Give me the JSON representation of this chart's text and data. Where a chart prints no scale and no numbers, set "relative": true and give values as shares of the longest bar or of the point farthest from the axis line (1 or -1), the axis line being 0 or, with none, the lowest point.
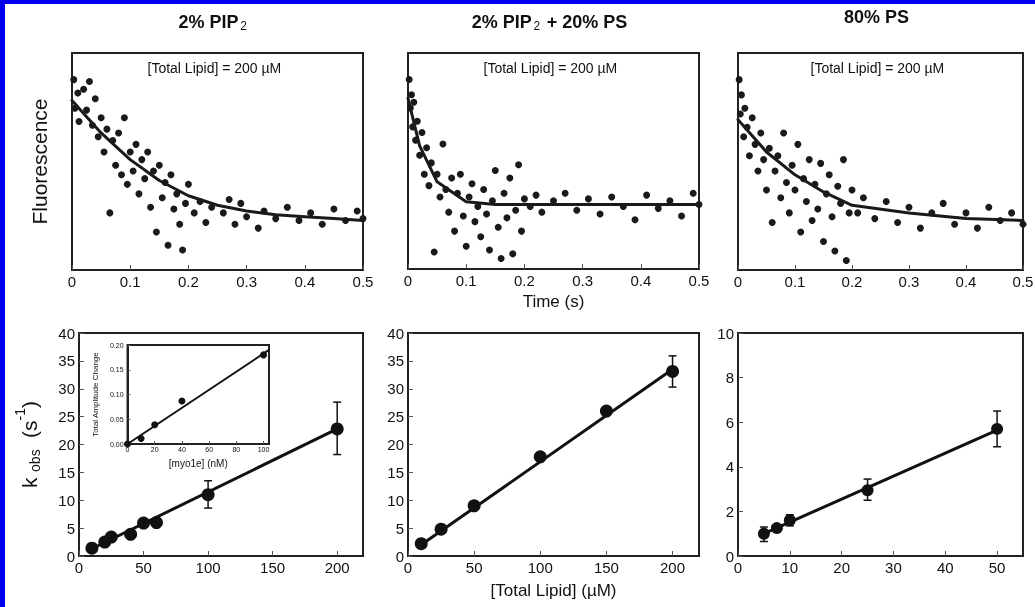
{
  "chart_data": [
    {
      "type": "scatter",
      "title": "2% PIP$_{2}$",
      "ylabel": "Fluorescence",
      "annotations": [
        "[Total Lipid] = 200 µM"
      ],
      "relative": true,
      "tick_labels": "x",
      "marker": "circle",
      "xlim": [
        0,
        0.5
      ],
      "xticks": [
        0,
        0.1,
        0.2,
        0.3,
        0.4,
        0.5
      ],
      "series": [
        {
          "type": "scatter",
          "color": "#1a1a1a",
          "x": [
            0.003,
            0.005,
            0.01,
            0.012,
            0.02,
            0.025,
            0.03,
            0.035,
            0.04,
            0.045,
            0.05,
            0.055,
            0.06,
            0.065,
            0.07,
            0.075,
            0.08,
            0.085,
            0.09,
            0.095,
            0.1,
            0.105,
            0.11,
            0.115,
            0.12,
            0.125,
            0.13,
            0.135,
            0.14,
            0.145,
            0.15,
            0.155,
            0.16,
            0.165,
            0.17,
            0.175,
            0.18,
            0.185,
            0.19,
            0.195,
            0.2,
            0.21,
            0.22,
            0.23,
            0.24,
            0.26,
            0.27,
            0.28,
            0.29,
            0.3,
            0.32,
            0.33,
            0.35,
            0.37,
            0.39,
            0.41,
            0.43,
            0.45,
            0.47,
            0.49,
            0.5
          ],
          "values": [
            1.0,
            0.85,
            0.93,
            0.78,
            0.95,
            0.84,
            0.99,
            0.76,
            0.9,
            0.7,
            0.8,
            0.62,
            0.74,
            0.3,
            0.68,
            0.55,
            0.72,
            0.5,
            0.8,
            0.45,
            0.62,
            0.52,
            0.66,
            0.4,
            0.58,
            0.48,
            0.62,
            0.33,
            0.52,
            0.2,
            0.55,
            0.38,
            0.46,
            0.13,
            0.5,
            0.32,
            0.4,
            0.24,
            0.105,
            0.35,
            0.45,
            0.3,
            0.36,
            0.25,
            0.33,
            0.3,
            0.37,
            0.24,
            0.35,
            0.28,
            0.22,
            0.31,
            0.27,
            0.33,
            0.26,
            0.3,
            0.24,
            0.32,
            0.26,
            0.31,
            0.27
          ]
        },
        {
          "type": "line",
          "marker": "none",
          "color": "#1a1a1a",
          "x": [
            0,
            0.05,
            0.1,
            0.15,
            0.2,
            0.25,
            0.3,
            0.35,
            0.4,
            0.45,
            0.5
          ],
          "values": [
            0.89,
            0.72,
            0.58,
            0.47,
            0.39,
            0.34,
            0.31,
            0.29,
            0.28,
            0.27,
            0.26
          ]
        }
      ]
    },
    {
      "type": "scatter",
      "title": "2% PIP$_{2}$ + 20% PS",
      "xlabel": "Time (s)",
      "annotations": [
        "[Total Lipid] = 200 µM"
      ],
      "relative": true,
      "tick_labels": "x",
      "marker": "circle",
      "xlim": [
        0,
        0.5
      ],
      "xticks": [
        0,
        0.1,
        0.2,
        0.3,
        0.4,
        0.5
      ],
      "series": [
        {
          "type": "scatter",
          "color": "#1a1a1a",
          "x": [
            0.002,
            0.004,
            0.006,
            0.008,
            0.01,
            0.013,
            0.016,
            0.02,
            0.024,
            0.028,
            0.032,
            0.036,
            0.04,
            0.045,
            0.05,
            0.055,
            0.06,
            0.065,
            0.07,
            0.075,
            0.08,
            0.085,
            0.09,
            0.095,
            0.1,
            0.105,
            0.11,
            0.115,
            0.12,
            0.125,
            0.13,
            0.135,
            0.14,
            0.145,
            0.15,
            0.155,
            0.16,
            0.165,
            0.17,
            0.175,
            0.18,
            0.185,
            0.19,
            0.195,
            0.2,
            0.21,
            0.22,
            0.23,
            0.25,
            0.27,
            0.29,
            0.31,
            0.33,
            0.35,
            0.37,
            0.39,
            0.41,
            0.43,
            0.45,
            0.47,
            0.49,
            0.5
          ],
          "values": [
            1.0,
            0.85,
            0.92,
            0.75,
            0.88,
            0.68,
            0.78,
            0.6,
            0.72,
            0.5,
            0.64,
            0.44,
            0.56,
            0.09,
            0.5,
            0.38,
            0.66,
            0.42,
            0.3,
            0.48,
            0.2,
            0.4,
            0.5,
            0.28,
            0.12,
            0.38,
            0.45,
            0.25,
            0.33,
            0.17,
            0.42,
            0.29,
            0.1,
            0.36,
            0.52,
            0.22,
            0.055,
            0.4,
            0.27,
            0.48,
            0.08,
            0.31,
            0.55,
            0.2,
            0.37,
            0.33,
            0.39,
            0.3,
            0.36,
            0.4,
            0.31,
            0.37,
            0.29,
            0.38,
            0.33,
            0.26,
            0.39,
            0.32,
            0.36,
            0.28,
            0.4,
            0.34
          ]
        },
        {
          "type": "line",
          "marker": "none",
          "color": "#1a1a1a",
          "x": [
            0,
            0.02,
            0.05,
            0.1,
            0.15,
            0.2,
            0.3,
            0.4,
            0.5
          ],
          "values": [
            0.9,
            0.65,
            0.46,
            0.355,
            0.34,
            0.34,
            0.34,
            0.34,
            0.34
          ]
        }
      ]
    },
    {
      "type": "scatter",
      "title": "80% PS",
      "annotations": [
        "[Total Lipid] = 200 µM"
      ],
      "relative": true,
      "tick_labels": "x",
      "marker": "circle",
      "xlim": [
        0,
        0.5
      ],
      "xticks": [
        0,
        0.1,
        0.2,
        0.3,
        0.4,
        0.5
      ],
      "series": [
        {
          "type": "scatter",
          "color": "#1a1a1a",
          "x": [
            0.002,
            0.004,
            0.006,
            0.01,
            0.012,
            0.016,
            0.02,
            0.025,
            0.03,
            0.035,
            0.04,
            0.045,
            0.05,
            0.055,
            0.06,
            0.065,
            0.07,
            0.075,
            0.08,
            0.085,
            0.09,
            0.095,
            0.1,
            0.105,
            0.11,
            0.115,
            0.12,
            0.125,
            0.13,
            0.135,
            0.14,
            0.145,
            0.15,
            0.155,
            0.16,
            0.165,
            0.17,
            0.175,
            0.18,
            0.185,
            0.19,
            0.195,
            0.2,
            0.21,
            0.22,
            0.24,
            0.26,
            0.28,
            0.3,
            0.32,
            0.34,
            0.36,
            0.38,
            0.4,
            0.42,
            0.44,
            0.46,
            0.48,
            0.5
          ],
          "values": [
            1.0,
            0.82,
            0.92,
            0.7,
            0.85,
            0.75,
            0.6,
            0.8,
            0.66,
            0.52,
            0.72,
            0.58,
            0.42,
            0.64,
            0.25,
            0.52,
            0.6,
            0.38,
            0.72,
            0.46,
            0.3,
            0.55,
            0.42,
            0.66,
            0.2,
            0.48,
            0.36,
            0.58,
            0.26,
            0.45,
            0.32,
            0.56,
            0.15,
            0.4,
            0.5,
            0.28,
            0.1,
            0.44,
            0.35,
            0.58,
            0.05,
            0.3,
            0.42,
            0.3,
            0.38,
            0.27,
            0.36,
            0.25,
            0.33,
            0.22,
            0.3,
            0.35,
            0.24,
            0.3,
            0.22,
            0.33,
            0.26,
            0.3,
            0.24
          ]
        },
        {
          "type": "line",
          "marker": "none",
          "color": "#1a1a1a",
          "x": [
            0,
            0.05,
            0.1,
            0.15,
            0.2,
            0.3,
            0.4,
            0.5
          ],
          "values": [
            0.79,
            0.62,
            0.5,
            0.41,
            0.34,
            0.3,
            0.27,
            0.26
          ]
        }
      ]
    },
    {
      "type": "scatter",
      "ylabel": "k$_{obs}$ (s$^{-1}$)",
      "marker": "circle",
      "xlim": [
        0,
        220
      ],
      "xticks": [
        0,
        50,
        100,
        150,
        200
      ],
      "ylim": [
        0,
        40
      ],
      "yticks": [
        0,
        5,
        10,
        15,
        20,
        25,
        30,
        35,
        40
      ],
      "series": [
        {
          "type": "scatter",
          "color": "#111111",
          "x": [
            10,
            20,
            25,
            40,
            50,
            60,
            100,
            200
          ],
          "values": [
            1.4,
            2.5,
            3.4,
            3.9,
            5.9,
            6.0,
            11.0,
            22.8
          ],
          "errors": [
            null,
            null,
            null,
            null,
            null,
            null,
            [
              8.6,
              13.5
            ],
            [
              18.2,
              27.6
            ]
          ]
        },
        {
          "type": "line",
          "marker": "none",
          "color": "#111111",
          "x": [
            10,
            200
          ],
          "values": [
            1.3,
            22.8
          ]
        }
      ]
    },
    {
      "type": "scatter",
      "xlabel": "[myo1e] (nM)",
      "ylabel": "Total Amplitude Change",
      "marker": "circle",
      "xlim": [
        0,
        104
      ],
      "xticks": [
        0,
        20,
        40,
        60,
        80,
        100
      ],
      "ylim": [
        0,
        0.2
      ],
      "yticks": [
        {
          "value": 0,
          "label": "0.00"
        },
        {
          "value": 0.05,
          "label": "0.05"
        },
        {
          "value": 0.1,
          "label": "0.10"
        },
        {
          "value": 0.15,
          "label": "0.15"
        },
        {
          "value": 0.2,
          "label": "0.20"
        }
      ],
      "series": [
        {
          "type": "scatter",
          "color": "#111111",
          "x": [
            0,
            10,
            20,
            40,
            100
          ],
          "values": [
            0.0,
            0.011,
            0.039,
            0.087,
            0.18
          ]
        },
        {
          "type": "line",
          "marker": "none",
          "color": "#111111",
          "x": [
            0,
            104
          ],
          "values": [
            0.0,
            0.19
          ]
        }
      ]
    },
    {
      "type": "scatter",
      "xlabel": "[Total Lipid] (µM)",
      "marker": "circle",
      "xlim": [
        0,
        220
      ],
      "xticks": [
        0,
        50,
        100,
        150,
        200
      ],
      "ylim": [
        0,
        40
      ],
      "yticks": [
        0,
        5,
        10,
        15,
        20,
        25,
        30,
        35,
        40
      ],
      "series": [
        {
          "type": "scatter",
          "color": "#111111",
          "x": [
            10,
            25,
            50,
            100,
            150,
            200
          ],
          "values": [
            2.2,
            4.8,
            9.0,
            17.8,
            26.0,
            33.1
          ],
          "errors": [
            null,
            null,
            null,
            null,
            null,
            [
              30.3,
              35.9
            ]
          ]
        },
        {
          "type": "line",
          "marker": "none",
          "color": "#111111",
          "x": [
            10,
            200
          ],
          "values": [
            2.0,
            33.5
          ]
        }
      ]
    },
    {
      "type": "scatter",
      "marker": "circle",
      "xlim": [
        0,
        55
      ],
      "xticks": [
        0,
        10,
        20,
        30,
        40,
        50
      ],
      "ylim": [
        0,
        10
      ],
      "yticks": [
        0,
        2,
        4,
        6,
        8,
        10
      ],
      "series": [
        {
          "type": "scatter",
          "color": "#111111",
          "x": [
            5,
            7.5,
            10,
            25,
            50
          ],
          "values": [
            1.0,
            1.25,
            1.6,
            2.95,
            5.7
          ],
          "errors": [
            [
              0.65,
              1.3
            ],
            null,
            [
              1.35,
              1.85
            ],
            [
              2.5,
              3.45
            ],
            [
              4.9,
              6.5
            ]
          ]
        },
        {
          "type": "line",
          "marker": "none",
          "color": "#111111",
          "x": [
            5,
            50
          ],
          "values": [
            1.0,
            5.65
          ]
        }
      ]
    }
  ]
}
